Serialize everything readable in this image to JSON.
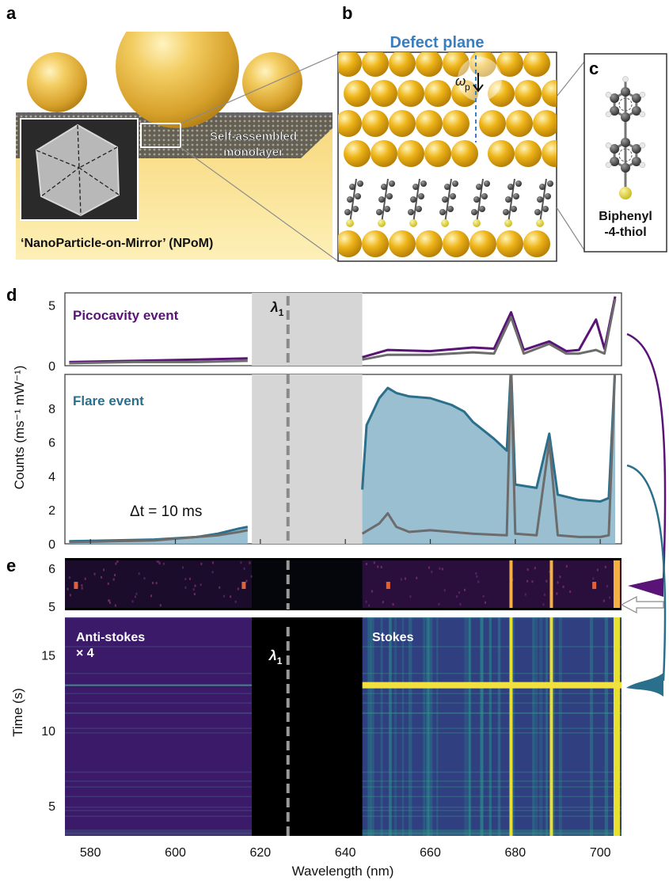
{
  "panels": {
    "a": {
      "label": "a",
      "inner_label_1": "Self-assembled",
      "inner_label_2": "monolayer",
      "caption": "‘NanoParticle-on-Mirror’ (NPoM)"
    },
    "b": {
      "label": "b",
      "title": "Defect plane",
      "omega": "ω",
      "omega_sub": "p"
    },
    "c": {
      "label": "c",
      "molecule_1": "Biphenyl",
      "molecule_2": "-4-thiol"
    },
    "d": {
      "label": "d",
      "ylabel": "Counts (ms⁻¹ mW⁻¹)",
      "laser_label": "λ",
      "laser_sub": "1",
      "top_label": "Picocavity event",
      "bottom_label": "Flare event",
      "dt_label": "Δt = 10 ms",
      "top_yticks": [
        "5",
        "0"
      ],
      "bottom_yticks": [
        "8",
        "6",
        "4",
        "2",
        "0"
      ]
    },
    "e": {
      "label": "e",
      "ylabel": "Time (s)",
      "antistokes_1": "Anti-stokes",
      "antistokes_2": "× 4",
      "stokes": "Stokes",
      "laser_label": "λ",
      "laser_sub": "1",
      "top_yticks": [
        "6",
        "5"
      ],
      "bottom_yticks": [
        "15",
        "10",
        "5"
      ],
      "xticks": [
        "580",
        "600",
        "620",
        "640",
        "660",
        "680",
        "700"
      ],
      "xlabel": "Wavelength (nm)"
    }
  },
  "colors": {
    "purple": "#5a1377",
    "teal": "#2a6f8c",
    "fill_teal": "#8fb8cb",
    "grey": "#6c6c6c",
    "laser_dash": "#8a8a8a",
    "mask": "#d6d6d6",
    "gold": "#f0c030",
    "title_blue": "#3a7ec0"
  },
  "chart_data": [
    {
      "type": "line",
      "title": "Picocavity event",
      "x_unit": "nm",
      "xlim": [
        574,
        705
      ],
      "ylim": [
        0,
        6
      ],
      "masked_region": [
        618,
        644
      ],
      "laser_line": 626.5,
      "series": [
        {
          "color": "#5a1377",
          "x": [
            575,
            590,
            605,
            617,
            644,
            650,
            660,
            670,
            675,
            679,
            682,
            688,
            692,
            695,
            699,
            701,
            703.5
          ],
          "y": [
            0.3,
            0.4,
            0.5,
            0.6,
            0.7,
            1.3,
            1.2,
            1.5,
            1.4,
            4.4,
            1.3,
            2.0,
            1.2,
            1.3,
            3.8,
            1.4,
            5.7
          ]
        },
        {
          "color": "#6c6c6c",
          "x": [
            575,
            590,
            605,
            617,
            644,
            650,
            660,
            670,
            675,
            679,
            682,
            688,
            692,
            695,
            699,
            701,
            703.5
          ],
          "y": [
            0.2,
            0.3,
            0.3,
            0.4,
            0.5,
            0.9,
            0.9,
            1.1,
            1.0,
            4.0,
            1.0,
            1.8,
            1.0,
            1.0,
            1.3,
            1.0,
            5.5
          ]
        }
      ]
    },
    {
      "type": "area",
      "title": "Flare event",
      "x_unit": "nm",
      "xlim": [
        574,
        705
      ],
      "ylim": [
        0,
        10
      ],
      "masked_region": [
        618,
        644
      ],
      "laser_line": 626.5,
      "series": [
        {
          "color": "#2a6f8c",
          "x": [
            575,
            585,
            595,
            605,
            610,
            615,
            617,
            644,
            645,
            648,
            650,
            652,
            655,
            660,
            665,
            668,
            670,
            675,
            678,
            679,
            680,
            685,
            688,
            690,
            695,
            700,
            702,
            703.5
          ],
          "y": [
            0.15,
            0.2,
            0.25,
            0.4,
            0.6,
            0.9,
            1.0,
            3.2,
            7.0,
            8.6,
            9.2,
            8.9,
            8.7,
            8.6,
            8.2,
            7.8,
            7.2,
            6.2,
            5.5,
            10.5,
            3.5,
            3.3,
            6.5,
            2.9,
            2.6,
            2.5,
            2.7,
            10.5
          ]
        },
        {
          "color": "#6c6c6c",
          "x": [
            575,
            585,
            595,
            605,
            610,
            615,
            617,
            644,
            648,
            650,
            652,
            655,
            660,
            670,
            678,
            679,
            680,
            685,
            688,
            690,
            695,
            700,
            702,
            703.5
          ],
          "y": [
            0.1,
            0.15,
            0.2,
            0.4,
            0.5,
            0.7,
            0.8,
            0.6,
            1.2,
            1.8,
            1.0,
            0.7,
            0.8,
            0.6,
            0.5,
            10.5,
            0.6,
            0.5,
            6.0,
            0.5,
            0.4,
            0.4,
            0.5,
            10.5
          ]
        }
      ]
    },
    {
      "type": "heatmap",
      "x_unit": "nm",
      "y_label": "Time (s)",
      "xlim": [
        574,
        705
      ],
      "ylim": [
        3,
        17.5
      ],
      "masked_region": [
        618,
        644
      ],
      "bright_lines_nm": [
        679,
        688.5,
        703.5
      ],
      "flare_time_s": 13,
      "colormap": "viridis"
    }
  ]
}
